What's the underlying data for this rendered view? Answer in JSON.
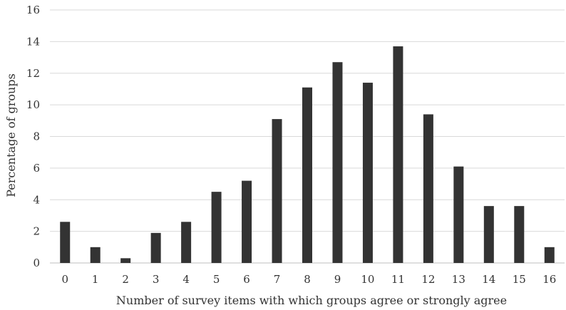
{
  "chart_data": {
    "type": "bar",
    "title": "",
    "xlabel": "Number of survey items with which groups agree or strongly agree",
    "ylabel": "Percentage of groups",
    "categories": [
      "0",
      "1",
      "2",
      "3",
      "4",
      "5",
      "6",
      "7",
      "8",
      "9",
      "10",
      "11",
      "12",
      "13",
      "14",
      "15",
      "16"
    ],
    "values": [
      2.6,
      1.0,
      0.3,
      1.9,
      2.6,
      4.5,
      5.2,
      9.1,
      11.1,
      12.7,
      11.4,
      13.7,
      9.4,
      6.1,
      3.6,
      3.6,
      1.0
    ],
    "ylim": [
      0,
      16
    ],
    "yticks": [
      "0",
      "2",
      "4",
      "6",
      "8",
      "10",
      "12",
      "14",
      "16"
    ],
    "grid": true,
    "colors": {
      "bar": "#333333",
      "grid": "#d9d9d9"
    }
  }
}
